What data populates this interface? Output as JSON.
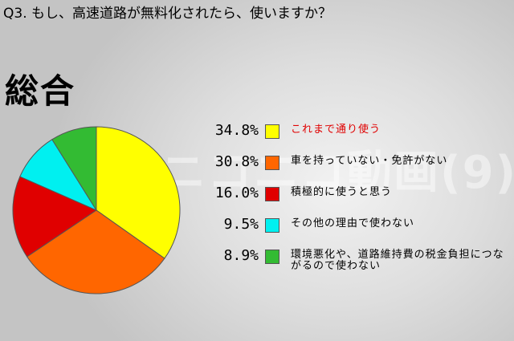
{
  "question": "Q3. もし、高速道路が無料化されたら、使いますか？",
  "section_title": "総合",
  "watermark": "ニコニコ動画(9)",
  "colors": {
    "yellow": "#ffff00",
    "orange": "#ff6600",
    "red": "#e00000",
    "cyan": "#00f0f0",
    "green": "#33bb33"
  },
  "chart_data": {
    "type": "pie",
    "start_angle_deg": 0,
    "direction": "clockwise",
    "slices": [
      {
        "label": "これまで通り使う",
        "pct_label": "34.8%",
        "value": 34.8,
        "color": "#ffff00",
        "highlight": true
      },
      {
        "label": "車を持っていない・免許がない",
        "pct_label": "30.8%",
        "value": 30.8,
        "color": "#ff6600",
        "highlight": false
      },
      {
        "label": "積極的に使うと思う",
        "pct_label": "16.0%",
        "value": 16.0,
        "color": "#e00000",
        "highlight": false
      },
      {
        "label": "その他の理由で使わない",
        "pct_label": "9.5%",
        "value": 9.5,
        "color": "#00f0f0",
        "highlight": false
      },
      {
        "label": "環境悪化や、道路維持費の税金負担につながるので使わない",
        "pct_label": "8.9%",
        "value": 8.9,
        "color": "#33bb33",
        "highlight": false
      }
    ]
  }
}
